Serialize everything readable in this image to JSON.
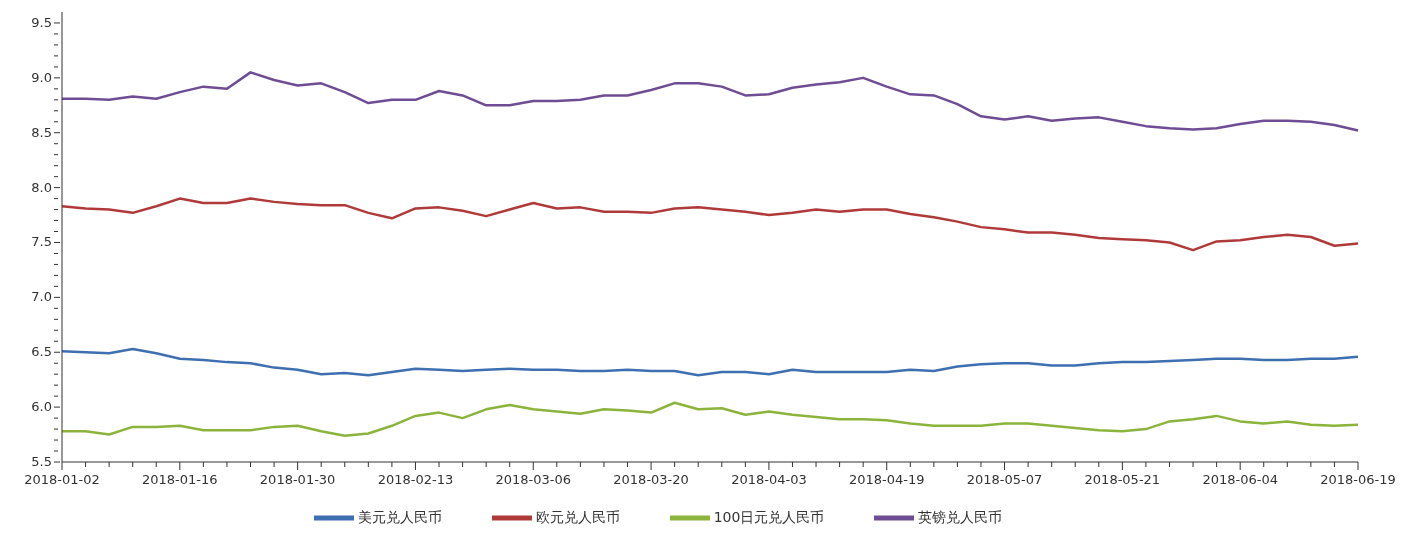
{
  "chart_data": {
    "type": "line",
    "categories": [
      "2018-01-02",
      null,
      null,
      null,
      null,
      "2018-01-16",
      null,
      null,
      null,
      null,
      "2018-01-30",
      null,
      null,
      null,
      null,
      "2018-02-13",
      null,
      null,
      null,
      null,
      "2018-03-06",
      null,
      null,
      null,
      null,
      "2018-03-20",
      null,
      null,
      null,
      null,
      "2018-04-03",
      null,
      null,
      null,
      null,
      "2018-04-19",
      null,
      null,
      null,
      null,
      "2018-05-07",
      null,
      null,
      null,
      null,
      "2018-05-21",
      null,
      null,
      null,
      null,
      "2018-06-04",
      null,
      null,
      null,
      null,
      "2018-06-19"
    ],
    "series": [
      {
        "name": "美元兑人民币",
        "color": "#3e6fb0",
        "values": [
          6.51,
          6.5,
          6.49,
          6.53,
          6.49,
          6.44,
          6.43,
          6.41,
          6.4,
          6.36,
          6.34,
          6.3,
          6.31,
          6.29,
          6.32,
          6.35,
          6.34,
          6.33,
          6.34,
          6.35,
          6.34,
          6.34,
          6.33,
          6.33,
          6.34,
          6.33,
          6.33,
          6.29,
          6.32,
          6.32,
          6.3,
          6.34,
          6.32,
          6.32,
          6.32,
          6.32,
          6.34,
          6.33,
          6.37,
          6.39,
          6.4,
          6.4,
          6.38,
          6.38,
          6.4,
          6.41,
          6.41,
          6.42,
          6.43,
          6.44,
          6.44,
          6.43,
          6.43,
          6.44,
          6.44,
          6.46
        ]
      },
      {
        "name": "欧元兑人民币",
        "color": "#b03a3a",
        "values": [
          7.83,
          7.81,
          7.8,
          7.77,
          7.83,
          7.9,
          7.86,
          7.86,
          7.9,
          7.87,
          7.85,
          7.84,
          7.84,
          7.77,
          7.72,
          7.81,
          7.82,
          7.79,
          7.74,
          7.8,
          7.86,
          7.81,
          7.82,
          7.78,
          7.78,
          7.77,
          7.81,
          7.82,
          7.8,
          7.78,
          7.75,
          7.77,
          7.8,
          7.78,
          7.8,
          7.8,
          7.76,
          7.73,
          7.69,
          7.64,
          7.62,
          7.59,
          7.59,
          7.57,
          7.54,
          7.53,
          7.52,
          7.5,
          7.43,
          7.51,
          7.52,
          7.55,
          7.57,
          7.55,
          7.47,
          7.49
        ]
      },
      {
        "name": "100日元兑人民币",
        "color": "#8cb43c",
        "values": [
          5.78,
          5.78,
          5.75,
          5.82,
          5.82,
          5.83,
          5.79,
          5.79,
          5.79,
          5.82,
          5.83,
          5.78,
          5.74,
          5.76,
          5.83,
          5.92,
          5.95,
          5.9,
          5.98,
          6.02,
          5.98,
          5.96,
          5.94,
          5.98,
          5.97,
          5.95,
          6.04,
          5.98,
          5.99,
          5.93,
          5.96,
          5.93,
          5.91,
          5.89,
          5.89,
          5.88,
          5.85,
          5.83,
          5.83,
          5.83,
          5.85,
          5.85,
          5.83,
          5.81,
          5.79,
          5.78,
          5.8,
          5.87,
          5.89,
          5.92,
          5.87,
          5.85,
          5.87,
          5.84,
          5.83,
          5.84
        ]
      },
      {
        "name": "英镑兑人民币",
        "color": "#6e4d94",
        "values": [
          8.81,
          8.81,
          8.8,
          8.83,
          8.81,
          8.87,
          8.92,
          8.9,
          9.05,
          8.98,
          8.93,
          8.95,
          8.87,
          8.77,
          8.8,
          8.8,
          8.88,
          8.84,
          8.75,
          8.75,
          8.79,
          8.79,
          8.8,
          8.84,
          8.84,
          8.89,
          8.95,
          8.95,
          8.92,
          8.84,
          8.85,
          8.91,
          8.94,
          8.96,
          9.0,
          8.92,
          8.85,
          8.84,
          8.76,
          8.65,
          8.62,
          8.65,
          8.61,
          8.63,
          8.64,
          8.6,
          8.56,
          8.54,
          8.53,
          8.54,
          8.58,
          8.61,
          8.61,
          8.6,
          8.57,
          8.52
        ]
      }
    ],
    "ylim": [
      5.5,
      9.6
    ],
    "yticks": [
      5.5,
      {
        "value": 5.6,
        "label": null
      },
      {
        "value": 5.7,
        "label": null
      },
      {
        "value": 5.8,
        "label": null
      },
      {
        "value": 5.9,
        "label": null
      },
      {
        "value": 6,
        "label": "6.0"
      },
      {
        "value": 6.1,
        "label": null
      },
      {
        "value": 6.2,
        "label": null
      },
      {
        "value": 6.3,
        "label": null
      },
      {
        "value": 6.4,
        "label": null
      },
      6.5,
      {
        "value": 6.6,
        "label": null
      },
      {
        "value": 6.7,
        "label": null
      },
      {
        "value": 6.8,
        "label": null
      },
      {
        "value": 6.9,
        "label": null
      },
      {
        "value": 7,
        "label": "7.0"
      },
      {
        "value": 7.1,
        "label": null
      },
      {
        "value": 7.2,
        "label": null
      },
      {
        "value": 7.3,
        "label": null
      },
      {
        "value": 7.4,
        "label": null
      },
      7.5,
      {
        "value": 7.6,
        "label": null
      },
      {
        "value": 7.7,
        "label": null
      },
      {
        "value": 7.8,
        "label": null
      },
      {
        "value": 7.9,
        "label": null
      },
      {
        "value": 8,
        "label": "8.0"
      },
      {
        "value": 8.1,
        "label": null
      },
      {
        "value": 8.2,
        "label": null
      },
      {
        "value": 8.3,
        "label": null
      },
      {
        "value": 8.4,
        "label": null
      },
      8.5,
      {
        "value": 8.6,
        "label": null
      },
      {
        "value": 8.7,
        "label": null
      },
      {
        "value": 8.8,
        "label": null
      },
      {
        "value": 8.9,
        "label": null
      },
      {
        "value": 9,
        "label": "9.0"
      },
      {
        "value": 9.1,
        "label": null
      },
      {
        "value": 9.2,
        "label": null
      },
      {
        "value": 9.3,
        "label": null
      },
      {
        "value": 9.4,
        "label": null
      },
      9.5
    ],
    "grid": false,
    "legend": "bottom",
    "marker": "none",
    "line_style": "solid"
  }
}
